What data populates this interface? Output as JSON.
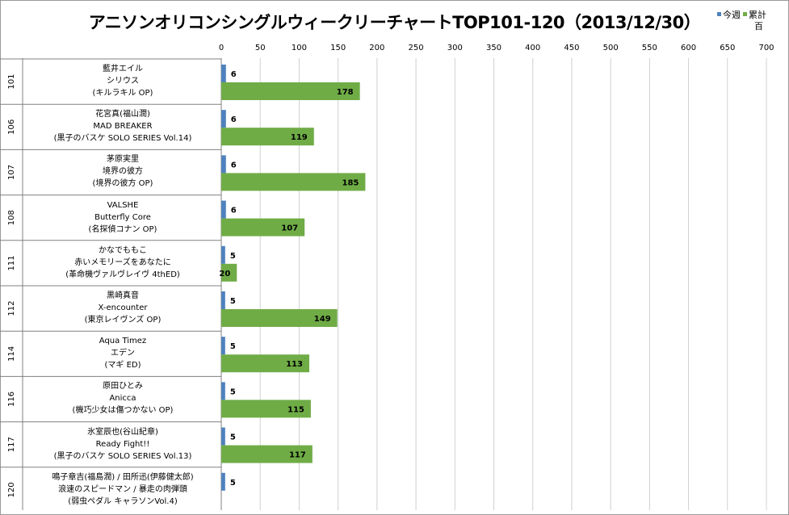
{
  "chart_data": {
    "type": "bar",
    "title": "アニソンオリコンシングルウィークリーチャートTOP101-120（2013/12/30）",
    "legend_unit": "百",
    "xlim": [
      0,
      700
    ],
    "xticks": [
      0,
      50,
      100,
      150,
      200,
      250,
      300,
      350,
      400,
      450,
      500,
      550,
      600,
      650,
      700
    ],
    "grid": true,
    "series": [
      {
        "name": "今週",
        "color": "#4f81bd",
        "values": [
          6,
          6,
          6,
          6,
          5,
          5,
          5,
          5,
          5,
          5
        ]
      },
      {
        "name": "累計",
        "color": "#6fac46",
        "values": [
          178,
          119,
          185,
          107,
          20,
          149,
          113,
          115,
          117,
          null
        ]
      }
    ],
    "categories": [
      {
        "rank": "101",
        "artist": "藍井エイル",
        "song": "シリウス",
        "tieup": "(キルラキル OP)"
      },
      {
        "rank": "106",
        "artist": "花宮真(福山潤)",
        "song": "MAD BREAKER",
        "tieup": "(黒子のバスケ SOLO SERIES Vol.14)"
      },
      {
        "rank": "107",
        "artist": "茅原実里",
        "song": "境界の彼方",
        "tieup": "(境界の彼方 OP)"
      },
      {
        "rank": "108",
        "artist": "VALSHE",
        "song": "Butterfly Core",
        "tieup": "(名探偵コナン OP)"
      },
      {
        "rank": "111",
        "artist": "かなでももこ",
        "song": "赤いメモリーズをあなたに",
        "tieup": "(革命機ヴァルヴレイヴ 4thED)"
      },
      {
        "rank": "112",
        "artist": "黒崎真音",
        "song": "X-encounter",
        "tieup": "(東京レイヴンズ OP)"
      },
      {
        "rank": "114",
        "artist": "Aqua Timez",
        "song": "エデン",
        "tieup": "(マギ ED)"
      },
      {
        "rank": "116",
        "artist": "原田ひとみ",
        "song": "Anicca",
        "tieup": "(機巧少女は傷つかない OP)"
      },
      {
        "rank": "117",
        "artist": "氷室辰也(谷山紀章)",
        "song": "Ready Fight!!",
        "tieup": "(黒子のバスケ SOLO SERIES Vol.13)"
      },
      {
        "rank": "120",
        "artist": "鳴子章吉(福島潤) / 田所迅(伊藤健太郎)",
        "song": "浪速のスピードマン / 暴走の肉弾頭",
        "tieup": "(弱虫ペダル キャラソンVol.4)"
      }
    ]
  }
}
